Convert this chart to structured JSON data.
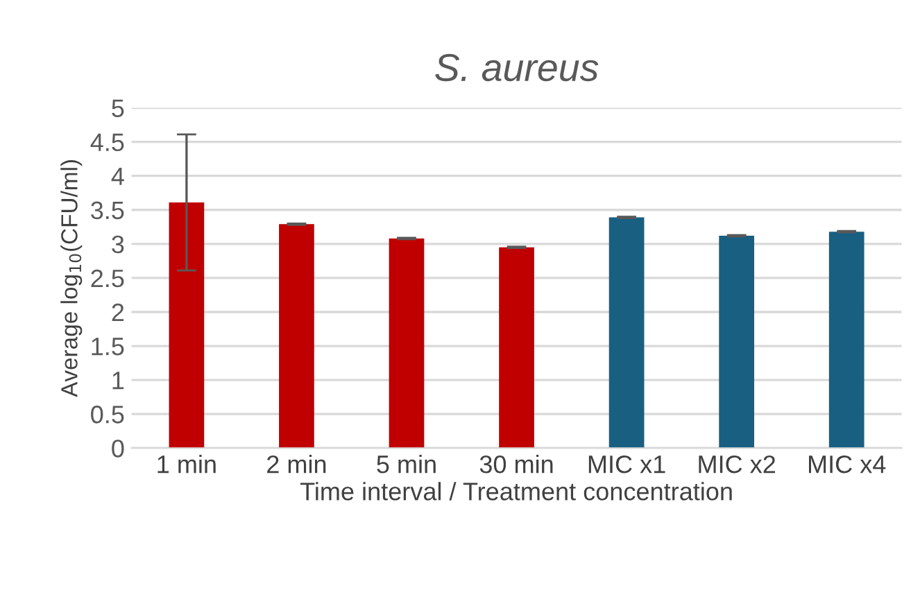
{
  "chart_data": {
    "type": "bar",
    "title": "S. aureus",
    "xlabel": "Time interval / Treatment concentration",
    "ylabel": "Average log$_{10}$(CFU/ml)",
    "categories": [
      "1 min",
      "2 min",
      "5 min",
      "30 min",
      "MIC x1",
      "MIC x2",
      "MIC x4"
    ],
    "values": [
      3.61,
      3.29,
      3.08,
      2.95,
      3.39,
      3.12,
      3.18
    ],
    "errors": [
      1.0,
      0.01,
      0.01,
      0.01,
      0.01,
      0.01,
      0.01
    ],
    "colors": [
      "#c00000",
      "#c00000",
      "#c00000",
      "#c00000",
      "#185f82",
      "#185f82",
      "#185f82"
    ],
    "ylim": [
      0,
      5
    ],
    "yticks": [
      0,
      0.5,
      1,
      1.5,
      2,
      2.5,
      3,
      3.5,
      4,
      4.5,
      5
    ],
    "grid": "y"
  }
}
